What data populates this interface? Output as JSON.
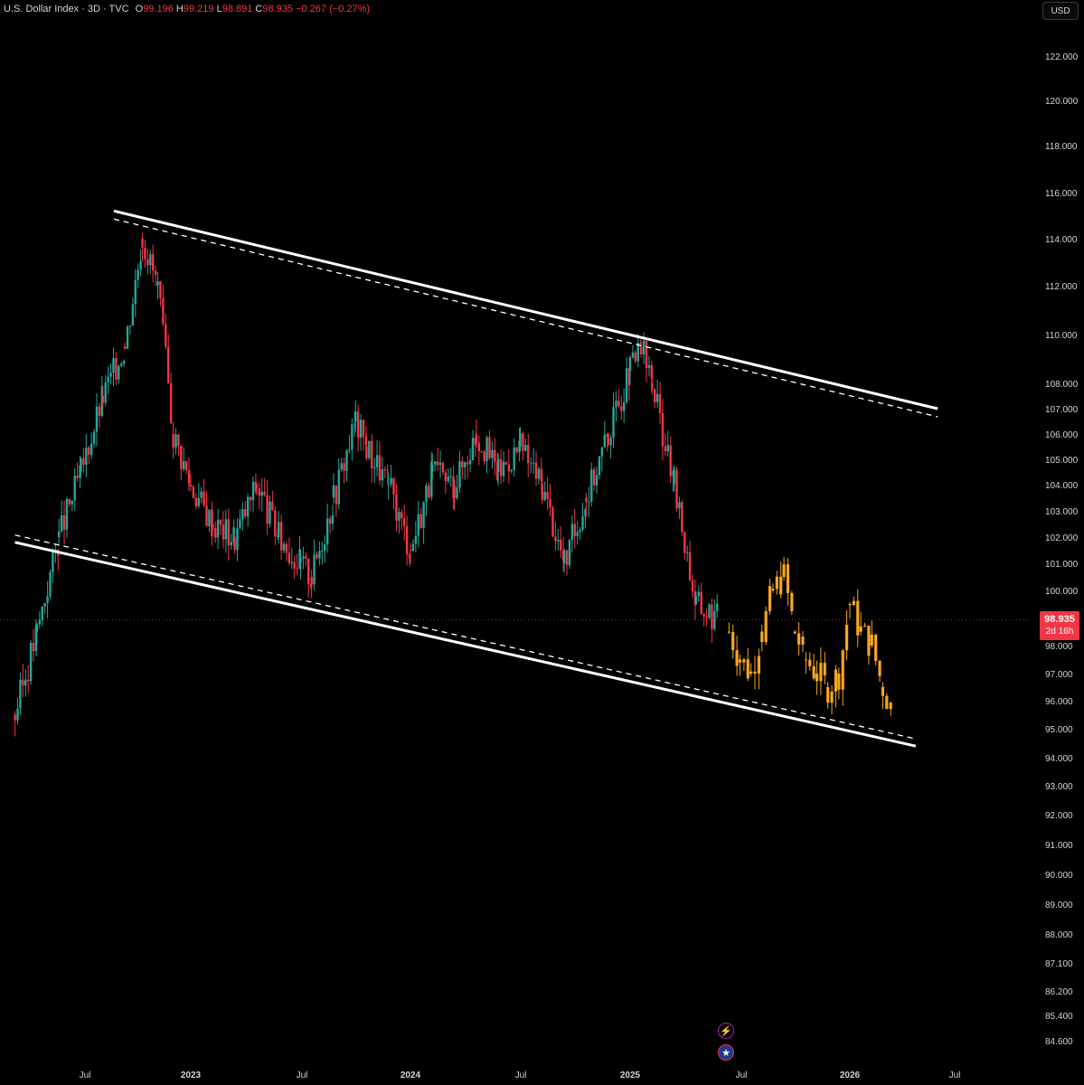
{
  "legend": {
    "symbol": "U.S. Dollar Index · 3D · TVC",
    "open_label": "O",
    "open": "99.196",
    "high_label": "H",
    "high": "99.219",
    "low_label": "L",
    "low": "98.891",
    "close_label": "C",
    "close": "98.935",
    "change": "−0.267 (−0.27%)"
  },
  "currency": "USD",
  "price_tag": {
    "price": "98.935",
    "countdown": "2d 16h"
  },
  "colors": {
    "up": "#26a69a",
    "down": "#f23645",
    "projection": "#f5a623",
    "channel": "#ffffff",
    "background": "#000000"
  },
  "icons": [
    "lightning-event-icon",
    "us-flag-event-icon"
  ],
  "chart_data": {
    "type": "line",
    "title": "U.S. Dollar Index · 3D · TVC",
    "yaxis_ticks": [
      "122.000",
      "120.000",
      "118.000",
      "116.000",
      "114.000",
      "112.000",
      "110.000",
      "108.000",
      "107.000",
      "106.000",
      "105.000",
      "104.000",
      "103.000",
      "102.000",
      "101.000",
      "100.000",
      "98.000",
      "97.000",
      "96.000",
      "95.000",
      "94.000",
      "93.000",
      "92.000",
      "91.000",
      "90.000",
      "89.000",
      "88.000",
      "87.100",
      "86.200",
      "85.400",
      "84.600"
    ],
    "xaxis_ticks": [
      "Jul",
      "2023",
      "Jul",
      "2024",
      "Jul",
      "2025",
      "Jul",
      "2026",
      "Jul"
    ],
    "log_scale": true,
    "series": [
      {
        "values_x": [
          2022.2,
          2022.3,
          2022.4,
          2022.5,
          2022.6,
          2022.7,
          2022.78,
          2022.85,
          2022.92,
          2023.0,
          2023.1,
          2023.2,
          2023.3,
          2023.4,
          2023.5,
          2023.55,
          2023.65,
          2023.75,
          2023.8,
          2023.9,
          2024.0,
          2024.1,
          2024.2,
          2024.3,
          2024.4,
          2024.5,
          2024.6,
          2024.7,
          2024.8,
          2024.9,
          2025.0,
          2025.05,
          2025.1,
          2025.2,
          2025.3,
          2025.4
        ],
        "values_y": [
          95.5,
          98.5,
          102.0,
          104.5,
          107.5,
          109.5,
          114.0,
          112.0,
          106.0,
          104.0,
          102.5,
          102.0,
          104.0,
          102.0,
          101.0,
          100.5,
          103.5,
          106.5,
          105.5,
          104.0,
          101.5,
          104.5,
          104.0,
          106.0,
          104.5,
          105.5,
          104.0,
          101.0,
          103.5,
          106.0,
          108.5,
          109.5,
          108.0,
          104.0,
          99.5,
          99.0
        ]
      },
      {
        "values_x": [
          2025.45,
          2025.5,
          2025.55,
          2025.6,
          2025.65,
          2025.7,
          2025.75,
          2025.8,
          2025.85,
          2025.9,
          2025.95,
          2026.0,
          2026.05,
          2026.1,
          2026.15,
          2026.2
        ],
        "values_y": [
          98.5,
          97.5,
          97.0,
          98.5,
          100.0,
          100.5,
          98.5,
          97.5,
          97.0,
          96.5,
          97.0,
          99.5,
          98.5,
          98.0,
          96.5,
          95.5
        ]
      }
    ],
    "channel": {
      "upper_line": [
        [
          2022.65,
          115.2
        ],
        [
          2026.4,
          107.0
        ]
      ],
      "lower_line": [
        [
          2022.2,
          101.8
        ],
        [
          2026.3,
          94.4
        ]
      ]
    },
    "last_price": 98.935,
    "ohlc": {
      "open": 99.196,
      "high": 99.219,
      "low": 98.891,
      "close": 98.935
    }
  }
}
